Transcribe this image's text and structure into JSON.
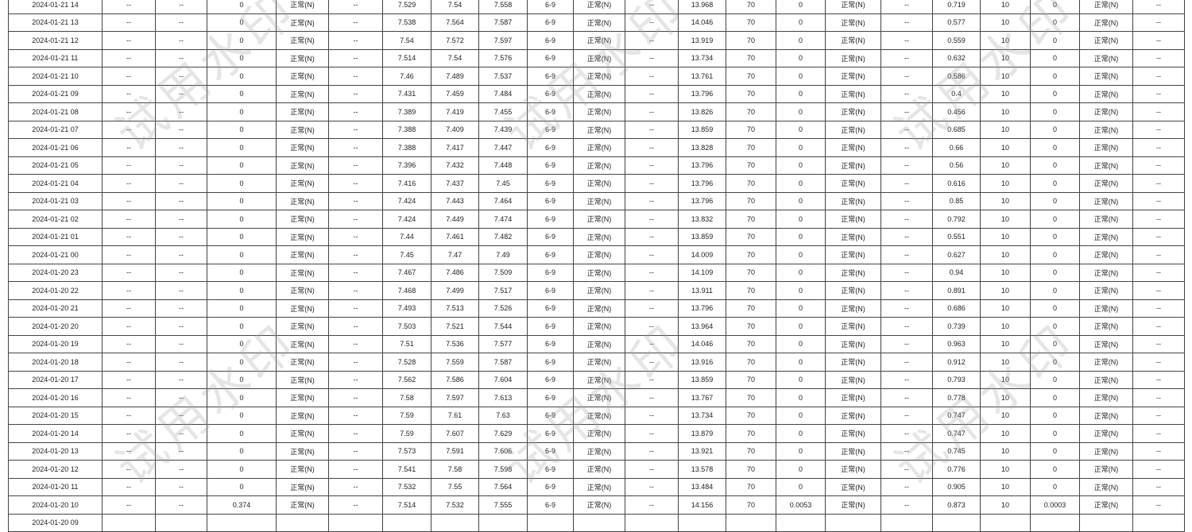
{
  "watermark": "试用水印",
  "status_label": "正常(N)",
  "empty": "--",
  "range_label": "6-9",
  "limit_a": "70",
  "limit_b": "10",
  "rows": [
    [
      "2024-01-21 14",
      "0",
      "7.529",
      "7.54",
      "7.558",
      "13.968",
      "0",
      "0.719",
      "0"
    ],
    [
      "2024-01-21 13",
      "0",
      "7.538",
      "7.564",
      "7.587",
      "14.046",
      "0",
      "0.577",
      "0"
    ],
    [
      "2024-01-21 12",
      "0",
      "7.54",
      "7.572",
      "7.597",
      "13.919",
      "0",
      "0.559",
      "0"
    ],
    [
      "2024-01-21 11",
      "0",
      "7.514",
      "7.54",
      "7.576",
      "13.734",
      "0",
      "0.632",
      "0"
    ],
    [
      "2024-01-21 10",
      "0",
      "7.46",
      "7.489",
      "7.537",
      "13.761",
      "0",
      "0.586",
      "0"
    ],
    [
      "2024-01-21 09",
      "0",
      "7.431",
      "7.459",
      "7.484",
      "13.796",
      "0",
      "0.4",
      "0"
    ],
    [
      "2024-01-21 08",
      "0",
      "7.389",
      "7.419",
      "7.455",
      "13.826",
      "0",
      "0.456",
      "0"
    ],
    [
      "2024-01-21 07",
      "0",
      "7.388",
      "7.409",
      "7.439",
      "13.859",
      "0",
      "0.685",
      "0"
    ],
    [
      "2024-01-21 06",
      "0",
      "7.388",
      "7.417",
      "7.447",
      "13.828",
      "0",
      "0.66",
      "0"
    ],
    [
      "2024-01-21 05",
      "0",
      "7.396",
      "7.432",
      "7.448",
      "13.796",
      "0",
      "0.56",
      "0"
    ],
    [
      "2024-01-21 04",
      "0",
      "7.416",
      "7.437",
      "7.45",
      "13.796",
      "0",
      "0.616",
      "0"
    ],
    [
      "2024-01-21 03",
      "0",
      "7.424",
      "7.443",
      "7.464",
      "13.796",
      "0",
      "0.85",
      "0"
    ],
    [
      "2024-01-21 02",
      "0",
      "7.424",
      "7.449",
      "7.474",
      "13.832",
      "0",
      "0.792",
      "0"
    ],
    [
      "2024-01-21 01",
      "0",
      "7.44",
      "7.461",
      "7.482",
      "13.859",
      "0",
      "0.551",
      "0"
    ],
    [
      "2024-01-21 00",
      "0",
      "7.45",
      "7.47",
      "7.49",
      "14.009",
      "0",
      "0.627",
      "0"
    ],
    [
      "2024-01-20 23",
      "0",
      "7.467",
      "7.486",
      "7.509",
      "14.109",
      "0",
      "0.94",
      "0"
    ],
    [
      "2024-01-20 22",
      "0",
      "7.468",
      "7.499",
      "7.517",
      "13.911",
      "0",
      "0.891",
      "0"
    ],
    [
      "2024-01-20 21",
      "0",
      "7.493",
      "7.513",
      "7.526",
      "13.796",
      "0",
      "0.686",
      "0"
    ],
    [
      "2024-01-20 20",
      "0",
      "7.503",
      "7.521",
      "7.544",
      "13.964",
      "0",
      "0.739",
      "0"
    ],
    [
      "2024-01-20 19",
      "0",
      "7.51",
      "7.536",
      "7.577",
      "14.046",
      "0",
      "0.963",
      "0"
    ],
    [
      "2024-01-20 18",
      "0",
      "7.528",
      "7.559",
      "7.587",
      "13.916",
      "0",
      "0.912",
      "0"
    ],
    [
      "2024-01-20 17",
      "0",
      "7.562",
      "7.586",
      "7.604",
      "13.859",
      "0",
      "0.793",
      "0"
    ],
    [
      "2024-01-20 16",
      "0",
      "7.58",
      "7.597",
      "7.613",
      "13.767",
      "0",
      "0.778",
      "0"
    ],
    [
      "2024-01-20 15",
      "0",
      "7.59",
      "7.61",
      "7.63",
      "13.734",
      "0",
      "0.747",
      "0"
    ],
    [
      "2024-01-20 14",
      "0",
      "7.59",
      "7.607",
      "7.629",
      "13.879",
      "0",
      "0.747",
      "0"
    ],
    [
      "2024-01-20 13",
      "0",
      "7.573",
      "7.591",
      "7.606",
      "13.921",
      "0",
      "0.745",
      "0"
    ],
    [
      "2024-01-20 12",
      "0",
      "7.541",
      "7.58",
      "7.598",
      "13.578",
      "0",
      "0.776",
      "0"
    ],
    [
      "2024-01-20 11",
      "0",
      "7.532",
      "7.55",
      "7.564",
      "13.484",
      "0",
      "0.905",
      "0"
    ],
    [
      "2024-01-20 10",
      "0.374",
      "7.514",
      "7.532",
      "7.555",
      "14.156",
      "0.0053",
      "0.873",
      "0.0003"
    ],
    [
      "2024-01-20 09",
      "",
      "",
      "",
      "",
      "",
      "",
      "",
      ""
    ]
  ]
}
